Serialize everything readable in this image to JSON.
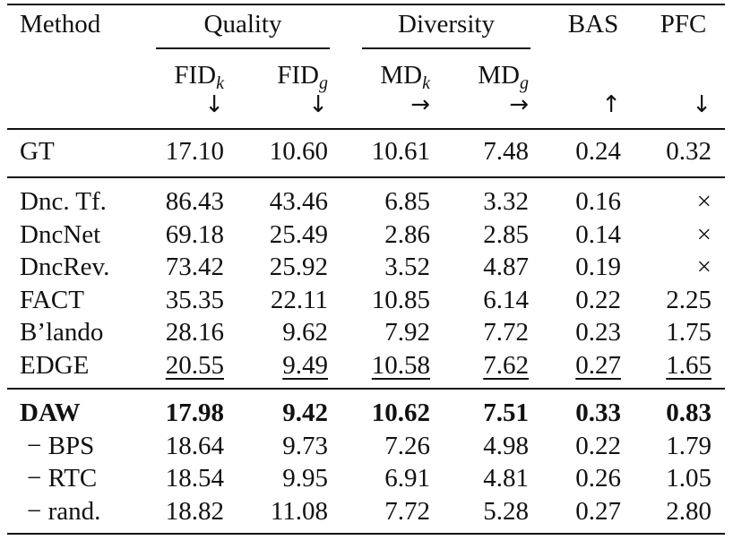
{
  "header": {
    "method": "Method",
    "quality": "Quality",
    "diversity": "Diversity",
    "bas": "BAS",
    "pfc": "PFC",
    "fid_k": {
      "main": "FID",
      "sub": "k"
    },
    "fid_g": {
      "main": "FID",
      "sub": "g"
    },
    "md_k": {
      "main": "MD",
      "sub": "k"
    },
    "md_g": {
      "main": "MD",
      "sub": "g"
    },
    "arrows": [
      "↓",
      "↓",
      "→",
      "→",
      "↑",
      "↓"
    ]
  },
  "gt": {
    "method": "GT",
    "values": [
      "17.10",
      "10.60",
      "10.61",
      "7.48",
      "0.24",
      "0.32"
    ]
  },
  "baselines": [
    {
      "method": "Dnc. Tf.",
      "values": [
        "86.43",
        "43.46",
        "6.85",
        "3.32",
        "0.16",
        "×"
      ]
    },
    {
      "method": "DncNet",
      "values": [
        "69.18",
        "25.49",
        "2.86",
        "2.85",
        "0.14",
        "×"
      ]
    },
    {
      "method": "DncRev.",
      "values": [
        "73.42",
        "25.92",
        "3.52",
        "4.87",
        "0.19",
        "×"
      ]
    },
    {
      "method": "FACT",
      "values": [
        "35.35",
        "22.11",
        "10.85",
        "6.14",
        "0.22",
        "2.25"
      ]
    },
    {
      "method": "B’lando",
      "values": [
        "28.16",
        "9.62",
        "7.92",
        "7.72",
        "0.23",
        "1.75"
      ]
    },
    {
      "method": "EDGE",
      "values": [
        "20.55",
        "9.49",
        "10.58",
        "7.62",
        "0.27",
        "1.65"
      ]
    }
  ],
  "ours": [
    {
      "method": "DAW",
      "values": [
        "17.98",
        "9.42",
        "10.62",
        "7.51",
        "0.33",
        "0.83"
      ]
    },
    {
      "method": "− BPS",
      "values": [
        "18.64",
        "9.73",
        "7.26",
        "4.98",
        "0.22",
        "1.79"
      ]
    },
    {
      "method": "− RTC",
      "values": [
        "18.54",
        "9.95",
        "6.91",
        "4.81",
        "0.26",
        "1.05"
      ]
    },
    {
      "method": "− rand.",
      "values": [
        "18.82",
        "11.08",
        "7.72",
        "5.28",
        "0.27",
        "2.80"
      ]
    }
  ]
}
